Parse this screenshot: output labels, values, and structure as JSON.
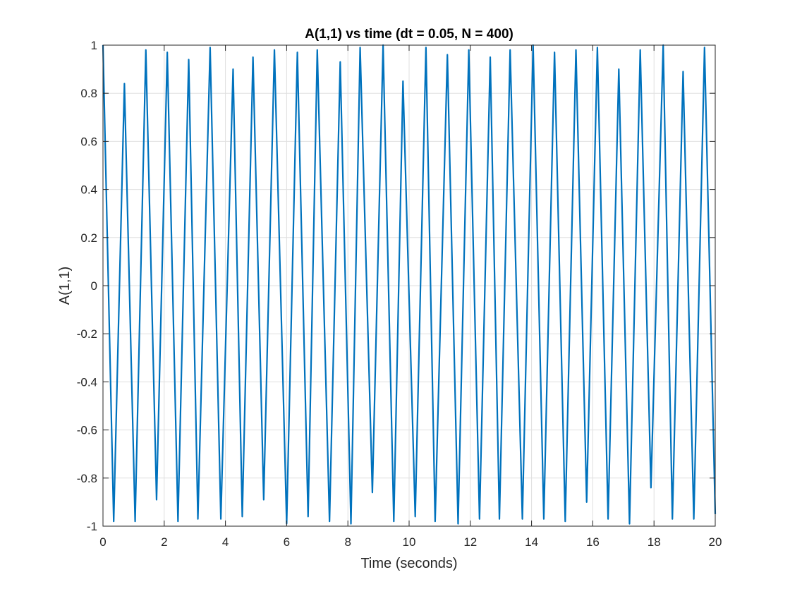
{
  "chart_data": {
    "type": "line",
    "title": "A(1,1) vs time  (dt = 0.05, N = 400)",
    "xlabel": "Time (seconds)",
    "ylabel": "A(1,1)",
    "xlim": [
      0,
      20
    ],
    "ylim": [
      -1,
      1
    ],
    "grid": true,
    "x_ticks": [
      0,
      2,
      4,
      6,
      8,
      10,
      12,
      14,
      16,
      18,
      20
    ],
    "x_tick_labels": [
      "0",
      "2",
      "4",
      "6",
      "8",
      "10",
      "12",
      "14",
      "16",
      "18",
      "20"
    ],
    "y_ticks": [
      -1,
      -0.8,
      -0.6,
      -0.4,
      -0.2,
      0,
      0.2,
      0.4,
      0.6,
      0.8,
      1
    ],
    "y_tick_labels": [
      "-1",
      "-0.8",
      "-0.6",
      "-0.4",
      "-0.2",
      "0",
      "0.2",
      "0.4",
      "0.6",
      "0.8",
      "1"
    ],
    "series": [
      {
        "color": "#0072BD",
        "points": [
          [
            0.0,
            1.0
          ],
          [
            0.35,
            -0.98
          ],
          [
            0.7,
            0.84
          ],
          [
            1.05,
            -0.98
          ],
          [
            1.4,
            0.98
          ],
          [
            1.75,
            -0.89
          ],
          [
            2.1,
            0.97
          ],
          [
            2.45,
            -0.98
          ],
          [
            2.8,
            0.94
          ],
          [
            3.1,
            -0.97
          ],
          [
            3.5,
            0.99
          ],
          [
            3.85,
            -0.97
          ],
          [
            4.25,
            0.9
          ],
          [
            4.55,
            -0.96
          ],
          [
            4.9,
            0.95
          ],
          [
            5.25,
            -0.89
          ],
          [
            5.6,
            0.98
          ],
          [
            6.0,
            -0.99
          ],
          [
            6.35,
            0.97
          ],
          [
            6.7,
            -0.96
          ],
          [
            7.0,
            0.98
          ],
          [
            7.4,
            -0.98
          ],
          [
            7.75,
            0.93
          ],
          [
            8.1,
            -0.99
          ],
          [
            8.4,
            0.99
          ],
          [
            8.8,
            -0.86
          ],
          [
            9.15,
            1.0
          ],
          [
            9.5,
            -0.98
          ],
          [
            9.8,
            0.85
          ],
          [
            10.2,
            -0.96
          ],
          [
            10.55,
            0.99
          ],
          [
            10.85,
            -0.98
          ],
          [
            11.25,
            0.96
          ],
          [
            11.6,
            -0.99
          ],
          [
            11.95,
            0.98
          ],
          [
            12.3,
            -0.97
          ],
          [
            12.65,
            0.95
          ],
          [
            12.95,
            -0.97
          ],
          [
            13.3,
            0.98
          ],
          [
            13.7,
            -0.97
          ],
          [
            14.05,
            1.0
          ],
          [
            14.4,
            -0.97
          ],
          [
            14.75,
            0.97
          ],
          [
            15.1,
            -0.98
          ],
          [
            15.45,
            0.98
          ],
          [
            15.8,
            -0.9
          ],
          [
            16.15,
            0.99
          ],
          [
            16.5,
            -0.97
          ],
          [
            16.85,
            0.9
          ],
          [
            17.2,
            -0.99
          ],
          [
            17.55,
            0.98
          ],
          [
            17.9,
            -0.84
          ],
          [
            18.3,
            1.0
          ],
          [
            18.6,
            -0.97
          ],
          [
            18.95,
            0.89
          ],
          [
            19.3,
            -0.97
          ],
          [
            19.65,
            0.99
          ],
          [
            20.0,
            -0.95
          ]
        ]
      }
    ]
  }
}
